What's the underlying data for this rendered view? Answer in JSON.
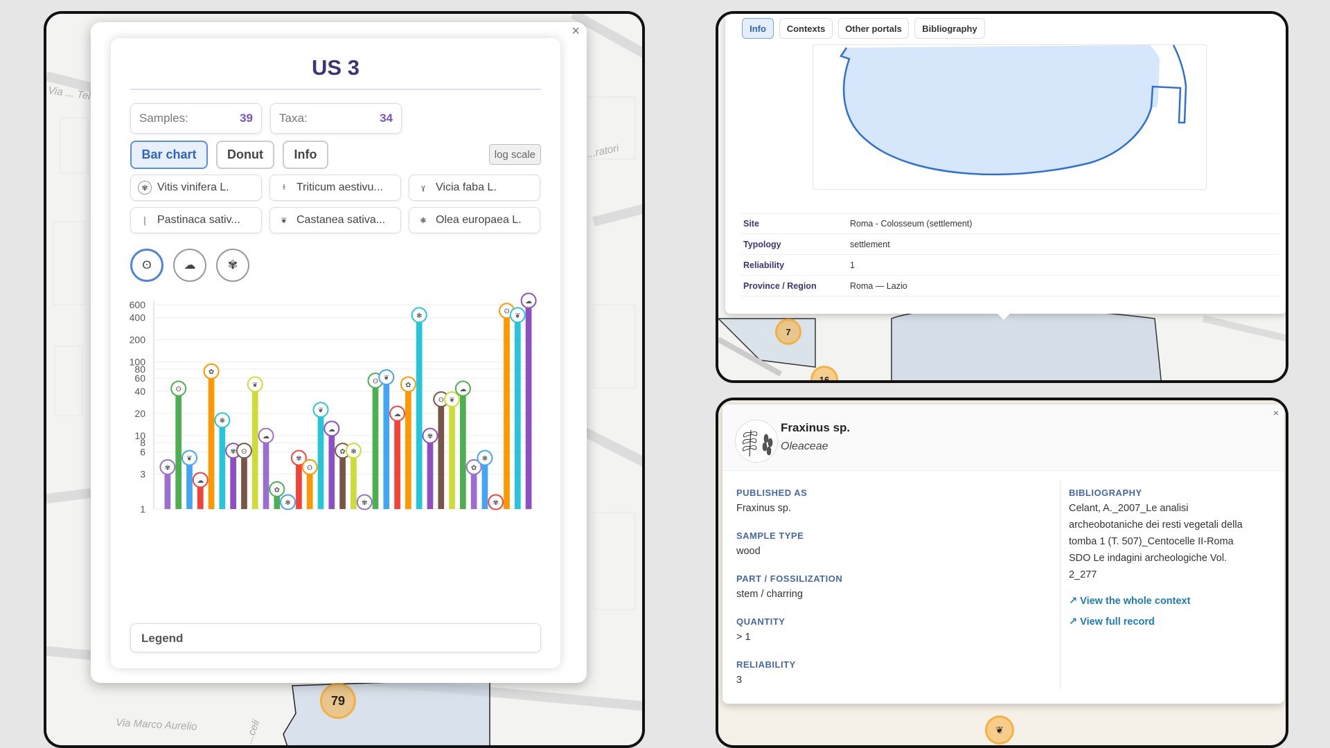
{
  "left": {
    "streets": [
      "Via Marco Aurelio",
      "Via ... Teler...",
      "...ratori",
      "...celi"
    ],
    "popup": {
      "title": "US 3",
      "close": "×",
      "stats": [
        {
          "label": "Samples:",
          "value": "39"
        },
        {
          "label": "Taxa:",
          "value": "34"
        }
      ],
      "tabs": [
        "Bar chart",
        "Donut",
        "Info"
      ],
      "log_scale": "log scale",
      "taxa": [
        "Vitis vinifera L.",
        "Triticum aestivu...",
        "Vicia faba L.",
        "Pastinaca sativ...",
        "Castanea sativa...",
        "Olea europaea L."
      ],
      "legend": "Legend"
    },
    "cluster": "79"
  },
  "chart_data": {
    "type": "bar",
    "yscale": "log",
    "ylim": [
      1,
      600
    ],
    "yticks": [
      "1",
      "3",
      "6",
      "8",
      "10",
      "20",
      "40",
      "60",
      "80",
      "100",
      "200",
      "400",
      "600"
    ],
    "values": [
      3,
      35,
      4,
      2,
      60,
      13,
      5,
      5,
      40,
      8,
      1.5,
      1,
      4,
      3,
      18,
      10,
      5,
      5,
      1,
      45,
      50,
      16,
      40,
      350,
      8,
      25,
      25,
      35,
      3,
      4,
      1,
      400,
      350,
      550
    ],
    "colors": [
      "#9b6fd0",
      "#4caf50",
      "#42a5f5",
      "#f44336",
      "#ff9800",
      "#26c6da",
      "#8e4fc4",
      "#795548",
      "#cddc39",
      "#9b6fd0",
      "#4caf50",
      "#42a5f5",
      "#f44336",
      "#ff9800",
      "#26c6da",
      "#8e4fc4",
      "#795548",
      "#cddc39",
      "#9b6fd0",
      "#4caf50",
      "#42a5f5",
      "#f44336",
      "#ff9800",
      "#26c6da",
      "#8e4fc4",
      "#795548",
      "#cddc39",
      "#4caf50",
      "#9b6fd0",
      "#42a5f5",
      "#f44336",
      "#ff9800",
      "#26c6da",
      "#8e4fc4"
    ]
  },
  "top_right": {
    "tabs": [
      "Info",
      "Contexts",
      "Other portals",
      "Bibliography"
    ],
    "fields": [
      {
        "k": "Site",
        "v": "Roma - Colosseum (settlement)"
      },
      {
        "k": "Typology",
        "v": "settlement"
      },
      {
        "k": "Reliability",
        "v": "1"
      },
      {
        "k": "Province / Region",
        "v": "Roma — Lazio"
      }
    ],
    "clusters": [
      "7",
      "16"
    ]
  },
  "bottom_right": {
    "name": "Fraxinus sp.",
    "family": "Oleaceae",
    "close": "×",
    "published_as_label": "PUBLISHED AS",
    "published_as": "Fraxinus sp.",
    "sample_type_label": "SAMPLE TYPE",
    "sample_type": "wood",
    "part_label": "PART / FOSSILIZATION",
    "part": "stem / charring",
    "quantity_label": "QUANTITY",
    "quantity": "> 1",
    "reliability_label": "RELIABILITY",
    "reliability": "3",
    "bibliography_label": "BIBLIOGRAPHY",
    "bibliography_lines": [
      "Celant, A._2007_Le analisi",
      "archeobotaniche dei resti vegetali della",
      "tomba 1 (T. 507)_Centocelle II-Roma",
      "SDO Le indagini archeologiche Vol.",
      "2_277"
    ],
    "link_context": "↗ View the whole context",
    "link_record": "↗ View full record"
  }
}
